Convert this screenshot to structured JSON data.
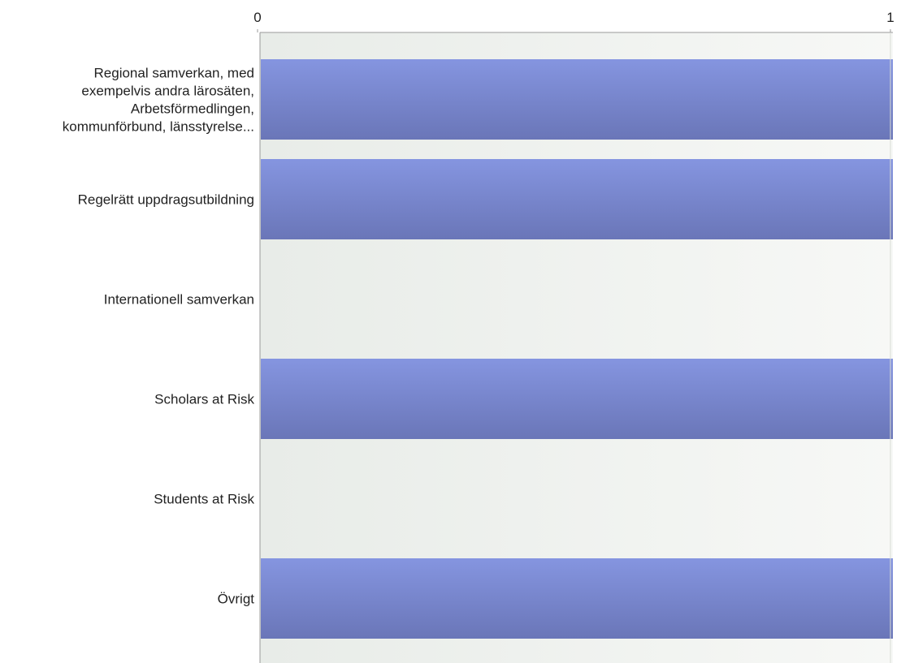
{
  "chart_data": {
    "type": "bar",
    "orientation": "horizontal",
    "categories": [
      [
        "Regional samverkan, med",
        "exempelvis andra lärosäten,",
        "Arbetsförmedlingen,",
        "kommunförbund, länsstyrelse..."
      ],
      [
        "Regelrätt uppdragsutbildning"
      ],
      [
        "Internationell samverkan"
      ],
      [
        "Scholars at Risk"
      ],
      [
        "Students at Risk"
      ],
      [
        "Övrigt"
      ]
    ],
    "values": [
      1,
      1,
      0,
      1,
      0,
      1
    ],
    "xlim": [
      0,
      1
    ],
    "x_ticks": [
      "0",
      "1"
    ],
    "x_axis_position": "top",
    "grid": false,
    "legend": "none",
    "colors": {
      "bar_top": "#8595e0",
      "bar_bottom": "#6a76b8",
      "plot_bg_left": "#e8ece8",
      "plot_bg_right": "#f7f8f6",
      "axis": "#9a9a9a"
    }
  }
}
